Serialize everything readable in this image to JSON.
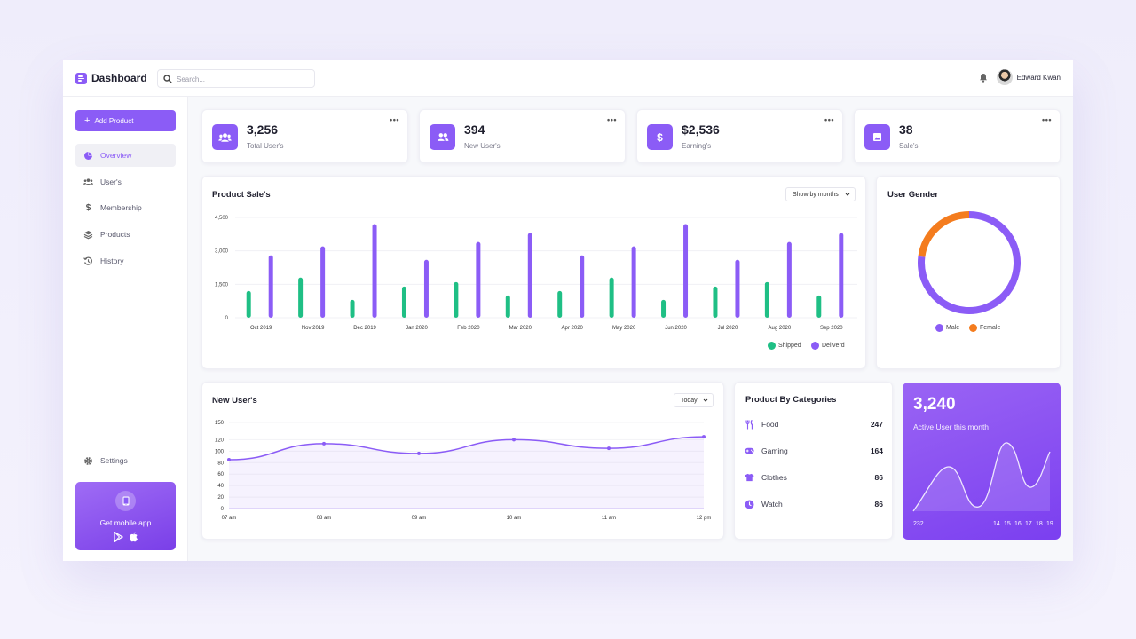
{
  "header": {
    "title": "Dashboard",
    "search_placeholder": "Search...",
    "user_name": "Edward Kwan"
  },
  "sidebar": {
    "add_button": "Add Product",
    "items": [
      {
        "label": "Overview",
        "icon": "pie-chart-icon",
        "active": true
      },
      {
        "label": "User's",
        "icon": "users-icon",
        "active": false
      },
      {
        "label": "Membership",
        "icon": "dollar-icon",
        "active": false
      },
      {
        "label": "Products",
        "icon": "layers-icon",
        "active": false
      },
      {
        "label": "History",
        "icon": "history-icon",
        "active": false
      }
    ],
    "settings": "Settings",
    "mobile_app": "Get mobile app"
  },
  "stats": [
    {
      "value": "3,256",
      "label": "Total User's",
      "icon": "users-icon"
    },
    {
      "value": "394",
      "label": "New User's",
      "icon": "users-icon"
    },
    {
      "value": "$2,536",
      "label": "Earning's",
      "icon": "dollar-icon"
    },
    {
      "value": "38",
      "label": "Sale's",
      "icon": "image-icon"
    }
  ],
  "product_sales": {
    "title": "Product Sale's",
    "filter": "Show by months",
    "legend_shipped": "Shipped",
    "legend_delivered": "Deliverd"
  },
  "user_gender": {
    "title": "User Gender",
    "male_label": "Male",
    "female_label": "Female"
  },
  "new_users": {
    "title": "New User's",
    "filter": "Today"
  },
  "categories": {
    "title": "Product By Categories",
    "items": [
      {
        "label": "Food",
        "value": "247",
        "icon": "utensils-icon"
      },
      {
        "label": "Gaming",
        "value": "164",
        "icon": "gamepad-icon"
      },
      {
        "label": "Clothes",
        "value": "86",
        "icon": "tshirt-icon"
      },
      {
        "label": "Watch",
        "value": "86",
        "icon": "clock-icon"
      }
    ]
  },
  "active_users": {
    "value": "3,240",
    "label": "Active User this month",
    "x_labels": [
      "232",
      "14",
      "15",
      "16",
      "17",
      "18",
      "19"
    ]
  },
  "colors": {
    "accent": "#8b5cf6",
    "shipped": "#1fbf85",
    "female": "#f47c1e",
    "male": "#8b5cf6"
  },
  "chart_data": [
    {
      "type": "bar",
      "title": "Product Sale's",
      "categories": [
        "Oct 2019",
        "Nov 2019",
        "Dec 2019",
        "Jan 2020",
        "Feb 2020",
        "Mar 2020",
        "Apr 2020",
        "May 2020",
        "Jun 2020",
        "Jul 2020",
        "Aug 2020",
        "Sep 2020"
      ],
      "series": [
        {
          "name": "Shipped",
          "values": [
            1200,
            1800,
            800,
            1400,
            1600,
            1000,
            1200,
            1800,
            800,
            1400,
            1600,
            1000
          ]
        },
        {
          "name": "Deliverd",
          "values": [
            2800,
            3200,
            4200,
            2600,
            3400,
            3800,
            2800,
            3200,
            4200,
            2600,
            3400,
            3800
          ]
        }
      ],
      "yticks": [
        "0",
        "1,500",
        "3,000",
        "4,500"
      ],
      "ylim": [
        0,
        4500
      ],
      "legend": "bottom-right"
    },
    {
      "type": "pie",
      "title": "User Gender",
      "categories": [
        "Male",
        "Female"
      ],
      "values": [
        77,
        23
      ]
    },
    {
      "type": "area",
      "title": "New User's",
      "x": [
        "07 am",
        "08 am",
        "09 am",
        "10 am",
        "11 am",
        "12 pm"
      ],
      "values": [
        85,
        113,
        96,
        120,
        105,
        125
      ],
      "yticks": [
        "0",
        "20",
        "40",
        "60",
        "80",
        "100",
        "120",
        "150"
      ],
      "ylim": [
        0,
        150
      ]
    }
  ]
}
